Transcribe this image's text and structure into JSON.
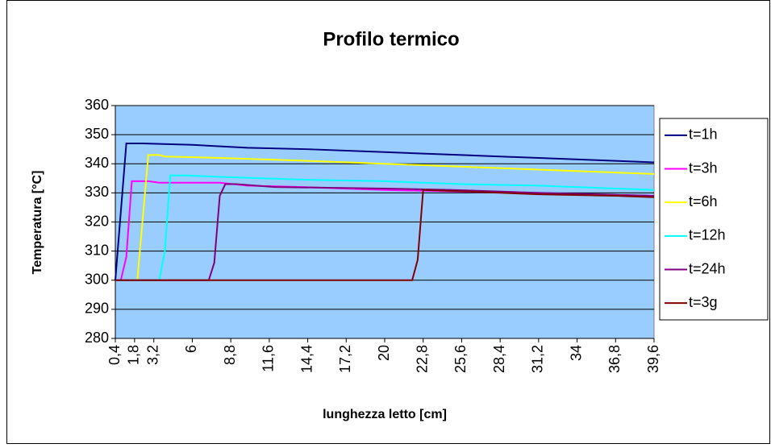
{
  "chart_data": {
    "type": "line",
    "title": "Profilo termico",
    "x_label": "lunghezza letto [cm]",
    "y_label": "Temperatura [°C]",
    "xlim": [
      0.4,
      39.6
    ],
    "ylim": [
      280,
      360
    ],
    "yticks": [
      280,
      290,
      300,
      310,
      320,
      330,
      340,
      350,
      360
    ],
    "xticks": [
      {
        "value": 0.4,
        "label": "0,4"
      },
      {
        "value": 1.8,
        "label": "1,8"
      },
      {
        "value": 3.2,
        "label": "3,2"
      },
      6,
      {
        "value": 8.8,
        "label": "8,8"
      },
      {
        "value": 11.6,
        "label": "11,6"
      },
      {
        "value": 14.4,
        "label": "14,4"
      },
      {
        "value": 17.2,
        "label": "17,2"
      },
      20,
      {
        "value": 22.8,
        "label": "22,8"
      },
      {
        "value": 25.6,
        "label": "25,6"
      },
      {
        "value": 28.4,
        "label": "28,4"
      },
      {
        "value": 31.2,
        "label": "31,2"
      },
      34,
      {
        "value": 36.8,
        "label": "36,8"
      },
      {
        "value": 39.6,
        "label": "39,6"
      }
    ],
    "grid": true,
    "legend": "right",
    "background": "#99ccff",
    "series": [
      {
        "name": "t=1h",
        "color": "#000080",
        "x": [
          0.4,
          1.2,
          2.4,
          6,
          10,
          14.4,
          20,
          25.6,
          31.2,
          36.8,
          39.6
        ],
        "values": [
          300,
          347,
          347,
          346.5,
          345.5,
          345,
          344,
          343,
          342,
          341,
          340.5
        ]
      },
      {
        "name": "t=3h",
        "color": "#ff00ff",
        "x": [
          0.4,
          0.8,
          1.2,
          1.6,
          2.8,
          3.6,
          8,
          10,
          14,
          20,
          39.6
        ],
        "values": [
          300,
          300,
          308,
          334,
          334,
          333.5,
          333.5,
          332.5,
          332,
          331,
          329
        ]
      },
      {
        "name": "t=6h",
        "color": "#ffff00",
        "x": [
          0.4,
          2.0,
          2.8,
          3.6,
          4,
          8,
          14.4,
          20,
          25.6,
          31.2,
          36.8,
          39.6
        ],
        "values": [
          300,
          300,
          343,
          343,
          342.5,
          342,
          341,
          340,
          339,
          338,
          337,
          336.5
        ]
      },
      {
        "name": "t=12h",
        "color": "#00ffff",
        "x": [
          0.4,
          3.6,
          4.0,
          4.4,
          5.6,
          8,
          14.4,
          20,
          25.6,
          31.2,
          39.6
        ],
        "values": [
          300,
          300,
          310,
          336,
          336,
          335.5,
          334.5,
          334,
          333,
          332.5,
          331
        ]
      },
      {
        "name": "t=24h",
        "color": "#800080",
        "x": [
          0.4,
          7.2,
          7.6,
          8.0,
          8.4,
          9.2,
          12,
          20,
          25,
          31.2,
          39.6
        ],
        "values": [
          300,
          300,
          306,
          329,
          333,
          333,
          332,
          331.5,
          331,
          330,
          329
        ]
      },
      {
        "name": "t=3g",
        "color": "#800000",
        "x": [
          0.4,
          22,
          22.4,
          22.8,
          26,
          31.2,
          36.8,
          39.6
        ],
        "values": [
          300,
          300,
          307,
          331,
          330.5,
          329.5,
          329,
          328.5
        ]
      }
    ]
  }
}
